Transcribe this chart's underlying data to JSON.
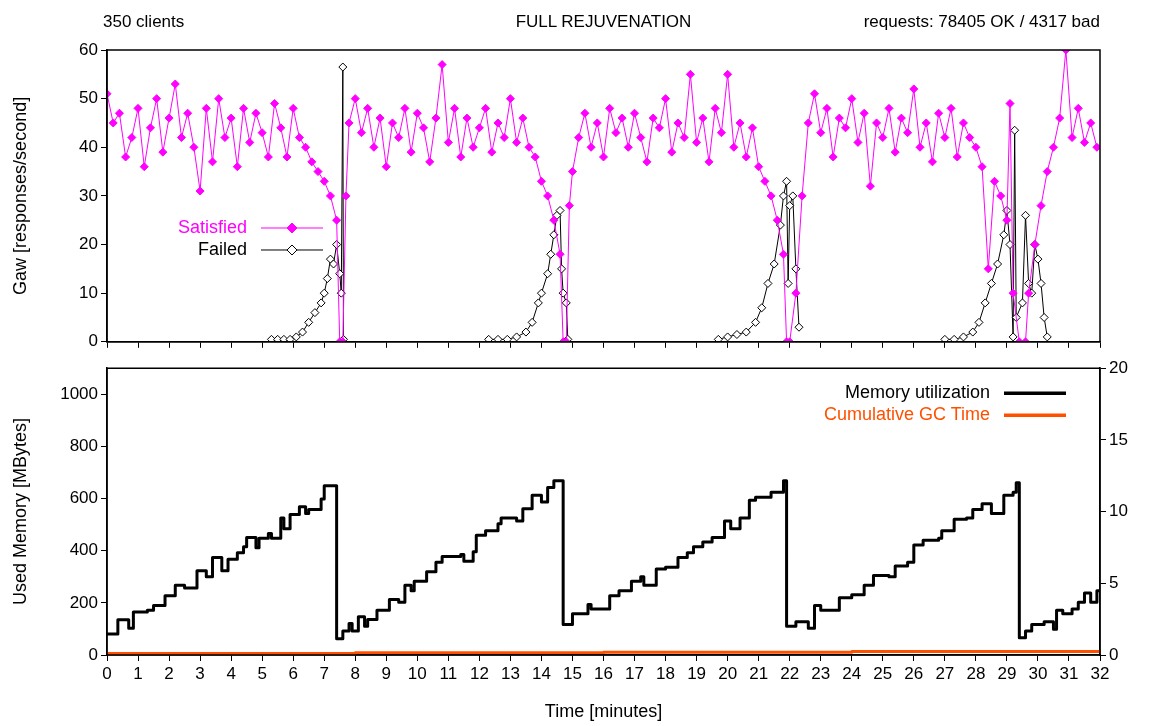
{
  "chart_data": [
    {
      "type": "line",
      "title": "FULL REJUVENATION",
      "annotations": [
        "350 clients",
        "requests: 78405 OK / 4317 bad"
      ],
      "ylabel": "Gaw [responses/second]",
      "xlim": [
        0,
        32
      ],
      "xticks": [
        0,
        1,
        2,
        3,
        4,
        5,
        6,
        7,
        8,
        9,
        10,
        11,
        12,
        13,
        14,
        15,
        16,
        17,
        18,
        19,
        20,
        21,
        22,
        23,
        24,
        25,
        26,
        27,
        28,
        29,
        30,
        31,
        32
      ],
      "ylim": [
        0,
        60
      ],
      "yticks": [
        0,
        10,
        20,
        30,
        40,
        50,
        60
      ],
      "tick_labels": "y",
      "grid": false,
      "legend": "left",
      "marker": "diamond",
      "series": [
        {
          "name": "Satisfied",
          "color": "#ff00ff",
          "x": [
            0,
            0.2,
            0.4,
            0.6,
            0.8,
            1.0,
            1.2,
            1.4,
            1.6,
            1.8,
            2.0,
            2.2,
            2.4,
            2.6,
            2.8,
            3.0,
            3.2,
            3.4,
            3.6,
            3.8,
            4.0,
            4.2,
            4.4,
            4.6,
            4.8,
            5.0,
            5.2,
            5.4,
            5.6,
            5.8,
            6.0,
            6.2,
            6.4,
            6.6,
            6.8,
            7.0,
            7.2,
            7.4,
            7.5,
            7.6,
            7.7,
            7.8,
            8.0,
            8.2,
            8.4,
            8.6,
            8.8,
            9.0,
            9.2,
            9.4,
            9.6,
            9.8,
            10.0,
            10.2,
            10.4,
            10.6,
            10.8,
            11.0,
            11.2,
            11.4,
            11.6,
            11.8,
            12.0,
            12.2,
            12.4,
            12.6,
            12.8,
            13.0,
            13.2,
            13.4,
            13.6,
            13.8,
            14.0,
            14.2,
            14.4,
            14.6,
            14.7,
            14.8,
            14.9,
            15.0,
            15.2,
            15.4,
            15.6,
            15.8,
            16.0,
            16.2,
            16.4,
            16.6,
            16.8,
            17.0,
            17.2,
            17.4,
            17.6,
            17.8,
            18.0,
            18.2,
            18.4,
            18.6,
            18.8,
            19.0,
            19.2,
            19.4,
            19.6,
            19.8,
            20.0,
            20.2,
            20.4,
            20.6,
            20.8,
            21.0,
            21.2,
            21.4,
            21.6,
            21.8,
            21.9,
            22.0,
            22.2,
            22.4,
            22.6,
            22.8,
            23.0,
            23.2,
            23.4,
            23.6,
            23.8,
            24.0,
            24.2,
            24.4,
            24.6,
            24.8,
            25.0,
            25.2,
            25.4,
            25.6,
            25.8,
            26.0,
            26.2,
            26.4,
            26.6,
            26.8,
            27.0,
            27.2,
            27.4,
            27.6,
            27.8,
            28.0,
            28.2,
            28.4,
            28.6,
            28.8,
            29.0,
            29.1,
            29.2,
            29.4,
            29.6,
            29.7,
            29.9,
            30.1,
            30.3,
            30.5,
            30.7,
            30.9,
            31.1,
            31.3,
            31.5,
            31.7,
            31.9
          ],
          "values": [
            51,
            45,
            47,
            38,
            42,
            48,
            36,
            44,
            50,
            39,
            46,
            53,
            42,
            47,
            40,
            31,
            48,
            37,
            50,
            42,
            46,
            36,
            48,
            41,
            47,
            43,
            38,
            49,
            44,
            38,
            48,
            42,
            40,
            37,
            35,
            33,
            30,
            25,
            0,
            0,
            30,
            45,
            50,
            43,
            48,
            40,
            46,
            36,
            45,
            42,
            48,
            39,
            47,
            44,
            37,
            46,
            57,
            41,
            48,
            38,
            46,
            40,
            44,
            48,
            39,
            45,
            42,
            50,
            41,
            46,
            40,
            38,
            33,
            30,
            25,
            18,
            0,
            0,
            28,
            35,
            42,
            47,
            40,
            45,
            38,
            48,
            43,
            46,
            40,
            47,
            42,
            37,
            46,
            44,
            50,
            39,
            45,
            42,
            55,
            41,
            46,
            37,
            48,
            43,
            55,
            40,
            45,
            38,
            44,
            36,
            33,
            30,
            25,
            18,
            0,
            0,
            10,
            30,
            45,
            51,
            43,
            48,
            38,
            46,
            44,
            50,
            41,
            47,
            32,
            45,
            42,
            48,
            39,
            46,
            43,
            52,
            40,
            45,
            37,
            47,
            42,
            48,
            38,
            45,
            42,
            40,
            36,
            15,
            33,
            30,
            25,
            49,
            10,
            0,
            0,
            10,
            20,
            28,
            35,
            40,
            46,
            60,
            42,
            48,
            41,
            45,
            40
          ]
        },
        {
          "name": "Failed",
          "color": "#000000",
          "x": [
            5.3,
            5.5,
            5.7,
            5.9,
            6.1,
            6.3,
            6.5,
            6.7,
            6.9,
            7.0,
            7.1,
            7.2,
            7.3,
            7.4,
            7.5,
            7.55,
            7.6,
            7.62,
            10,
            12.3,
            12.6,
            12.9,
            13.2,
            13.5,
            13.7,
            13.9,
            14.0,
            14.2,
            14.3,
            14.4,
            14.5,
            14.6,
            14.65,
            14.7,
            14.8,
            14.85,
            17,
            19.7,
            20.0,
            20.3,
            20.6,
            20.9,
            21.1,
            21.3,
            21.5,
            21.7,
            21.8,
            21.9,
            21.95,
            22.0,
            22.1,
            22.2,
            22.3,
            25,
            27.0,
            27.3,
            27.6,
            27.9,
            28.1,
            28.3,
            28.5,
            28.7,
            28.9,
            29.0,
            29.1,
            29.2,
            29.25,
            29.3,
            29.5,
            29.6,
            29.7,
            29.8,
            29.9,
            30.0,
            30.1,
            30.2,
            30.3
          ],
          "values": [
            0.5,
            0.5,
            0.5,
            0.5,
            1,
            2,
            4,
            6,
            8,
            10,
            13,
            17,
            16,
            20,
            14,
            10,
            56.5,
            0.5,
            null,
            0.5,
            0.5,
            0.5,
            1,
            2,
            4,
            8,
            10,
            14,
            18,
            22,
            26,
            27,
            15,
            10,
            8,
            0.5,
            null,
            0.5,
            1,
            1.5,
            2,
            4,
            7,
            12,
            16,
            24,
            30,
            33,
            12,
            28,
            30,
            15,
            3,
            null,
            0.5,
            0.5,
            1,
            2,
            4,
            8,
            12,
            16,
            22,
            27,
            20,
            1,
            43.5,
            5,
            8,
            26,
            12,
            10,
            20,
            17,
            12,
            5,
            1
          ]
        }
      ]
    },
    {
      "type": "step",
      "xlabel": "Time [minutes]",
      "ylabel": "Used Memory [MBytes]",
      "xlim": [
        0,
        32
      ],
      "xticks": [
        0,
        1,
        2,
        3,
        4,
        5,
        6,
        7,
        8,
        9,
        10,
        11,
        12,
        13,
        14,
        15,
        16,
        17,
        18,
        19,
        20,
        21,
        22,
        23,
        24,
        25,
        26,
        27,
        28,
        29,
        30,
        31,
        32
      ],
      "ylim": [
        0,
        1100
      ],
      "yticks": [
        0,
        200,
        400,
        600,
        800,
        1000
      ],
      "y2lim": [
        0,
        20
      ],
      "y2ticks": [
        0,
        5,
        10,
        15,
        20
      ],
      "grid": false,
      "legend": "top right",
      "series": [
        {
          "name": "Memory utilization",
          "color": "#000000",
          "x": [
            0,
            0.35,
            0.7,
            0.85,
            1.3,
            1.5,
            1.87,
            2.2,
            2.5,
            2.9,
            3.2,
            3.4,
            3.7,
            3.9,
            4.2,
            4.4,
            4.5,
            4.8,
            4.9,
            5.2,
            5.3,
            5.6,
            5.7,
            5.9,
            6.2,
            6.4,
            6.5,
            6.9,
            7.0,
            7.4,
            7.6,
            7.8,
            7.9,
            8.1,
            8.3,
            8.4,
            8.7,
            9.1,
            9.4,
            9.6,
            9.8,
            9.9,
            10.3,
            10.6,
            10.8,
            11.4,
            11.5,
            11.8,
            11.9,
            12.2,
            12.6,
            12.7,
            13.2,
            13.4,
            13.7,
            14.0,
            14.2,
            14.4,
            14.7,
            15.0,
            15.5,
            15.6,
            15.8,
            16.2,
            16.5,
            16.9,
            17.2,
            17.3,
            17.7,
            18.0,
            18.4,
            18.7,
            18.9,
            19.2,
            19.5,
            19.9,
            20.1,
            20.4,
            20.7,
            20.9,
            21.4,
            21.8,
            21.9,
            22.2,
            22.6,
            22.8,
            23.0,
            23.6,
            24.0,
            24.4,
            24.7,
            25.2,
            25.4,
            25.8,
            26.0,
            26.3,
            26.8,
            26.9,
            27.3,
            27.7,
            27.9,
            28.2,
            28.5,
            28.9,
            29.2,
            29.3,
            29.4,
            29.6,
            29.8,
            30.2,
            30.5,
            30.6,
            30.8,
            31.1,
            31.3,
            31.5,
            31.7,
            31.9,
            32
          ],
          "values": [
            81,
            135,
            103,
            165,
            172,
            190,
            227,
            268,
            257,
            323,
            300,
            374,
            323,
            367,
            392,
            415,
            451,
            411,
            448,
            466,
            448,
            525,
            484,
            539,
            569,
            543,
            558,
            598,
            649,
            62,
            92,
            121,
            92,
            147,
            110,
            136,
            172,
            213,
            202,
            268,
            246,
            283,
            319,
            356,
            378,
            385,
            360,
            396,
            459,
            477,
            503,
            525,
            514,
            561,
            613,
            587,
            642,
            668,
            117,
            158,
            194,
            176,
            176,
            227,
            246,
            283,
            300,
            268,
            330,
            337,
            374,
            392,
            415,
            433,
            451,
            514,
            484,
            525,
            594,
            605,
            624,
            668,
            110,
            128,
            103,
            190,
            172,
            220,
            231,
            268,
            305,
            300,
            341,
            356,
            422,
            440,
            448,
            477,
            521,
            525,
            558,
            580,
            543,
            613,
            624,
            661,
            66,
            92,
            117,
            128,
            99,
            172,
            158,
            176,
            202,
            238,
            202,
            246,
            246
          ]
        },
        {
          "name": "Cumulative GC Time",
          "color": "#ff5000",
          "axis": "y2",
          "x": [
            0,
            8,
            16,
            24,
            32
          ],
          "values": [
            0.1,
            0.15,
            0.2,
            0.25,
            0.3
          ]
        }
      ]
    }
  ]
}
